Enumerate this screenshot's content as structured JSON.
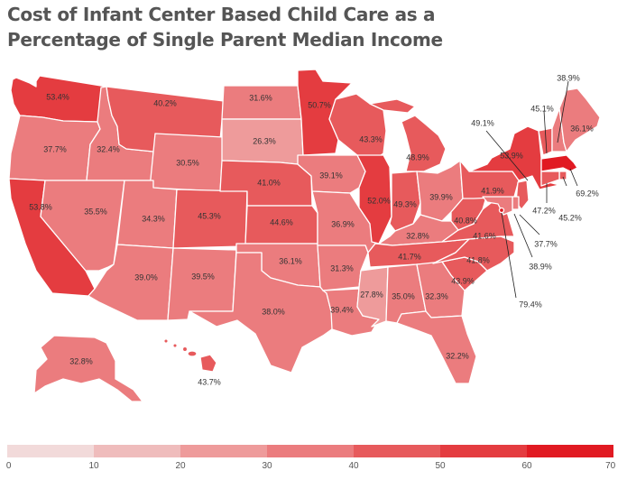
{
  "title": {
    "line1": "Cost of Infant Center Based Child Care as a",
    "line2": "Percentage of Single Parent Median Income"
  },
  "legend": {
    "ticks": [
      "0",
      "10",
      "20",
      "30",
      "40",
      "50",
      "60",
      "70"
    ],
    "bins": [
      {
        "min": 0,
        "max": 10,
        "color": "#f2dada"
      },
      {
        "min": 10,
        "max": 20,
        "color": "#efbcbc"
      },
      {
        "min": 20,
        "max": 30,
        "color": "#ee9b9b"
      },
      {
        "min": 30,
        "max": 40,
        "color": "#eb7c7e"
      },
      {
        "min": 40,
        "max": 50,
        "color": "#e75a5c"
      },
      {
        "min": 50,
        "max": 60,
        "color": "#e43c40"
      },
      {
        "min": 60,
        "max": 70,
        "color": "#e11a22"
      }
    ]
  },
  "states": {
    "WA": {
      "name": "Washington",
      "value": 53.4,
      "label": "53.4%"
    },
    "OR": {
      "name": "Oregon",
      "value": 37.7,
      "label": "37.7%"
    },
    "CA": {
      "name": "California",
      "value": 53.8,
      "label": "53.8%"
    },
    "ID": {
      "name": "Idaho",
      "value": 32.4,
      "label": "32.4%"
    },
    "NV": {
      "name": "Nevada",
      "value": 35.5,
      "label": "35.5%"
    },
    "MT": {
      "name": "Montana",
      "value": 40.2,
      "label": "40.2%"
    },
    "WY": {
      "name": "Wyoming",
      "value": 30.5,
      "label": "30.5%"
    },
    "UT": {
      "name": "Utah",
      "value": 34.3,
      "label": "34.3%"
    },
    "AZ": {
      "name": "Arizona",
      "value": 39.0,
      "label": "39.0%"
    },
    "CO": {
      "name": "Colorado",
      "value": 45.3,
      "label": "45.3%"
    },
    "NM": {
      "name": "New Mexico",
      "value": 39.5,
      "label": "39.5%"
    },
    "ND": {
      "name": "North Dakota",
      "value": 31.6,
      "label": "31.6%"
    },
    "SD": {
      "name": "South Dakota",
      "value": 26.3,
      "label": "26.3%"
    },
    "NE": {
      "name": "Nebraska",
      "value": 41.0,
      "label": "41.0%"
    },
    "KS": {
      "name": "Kansas",
      "value": 44.6,
      "label": "44.6%"
    },
    "OK": {
      "name": "Oklahoma",
      "value": 36.1,
      "label": "36.1%"
    },
    "TX": {
      "name": "Texas",
      "value": 38.0,
      "label": "38.0%"
    },
    "MN": {
      "name": "Minnesota",
      "value": 50.7,
      "label": "50.7%"
    },
    "IA": {
      "name": "Iowa",
      "value": 39.1,
      "label": "39.1%"
    },
    "MO": {
      "name": "Missouri",
      "value": 36.9,
      "label": "36.9%"
    },
    "AR": {
      "name": "Arkansas",
      "value": 31.3,
      "label": "31.3%"
    },
    "LA": {
      "name": "Louisiana",
      "value": 39.4,
      "label": "39.4%"
    },
    "WI": {
      "name": "Wisconsin",
      "value": 43.3,
      "label": "43.3%"
    },
    "IL": {
      "name": "Illinois",
      "value": 52.0,
      "label": "52.0%"
    },
    "MI": {
      "name": "Michigan",
      "value": 48.9,
      "label": "48.9%"
    },
    "IN": {
      "name": "Indiana",
      "value": 49.3,
      "label": "49.3%"
    },
    "OH": {
      "name": "Ohio",
      "value": 39.9,
      "label": "39.9%"
    },
    "KY": {
      "name": "Kentucky",
      "value": 32.8,
      "label": "32.8%"
    },
    "TN": {
      "name": "Tennessee",
      "value": 41.7,
      "label": "41.7%"
    },
    "MS": {
      "name": "Mississippi",
      "value": 27.8,
      "label": "27.8%"
    },
    "AL": {
      "name": "Alabama",
      "value": 35.0,
      "label": "35.0%"
    },
    "GA": {
      "name": "Georgia",
      "value": 32.3,
      "label": "32.3%"
    },
    "FL": {
      "name": "Florida",
      "value": 32.2,
      "label": "32.2%"
    },
    "SC": {
      "name": "South Carolina",
      "value": 43.9,
      "label": "43.9%"
    },
    "NC": {
      "name": "North Carolina",
      "value": 41.8,
      "label": "41.8%"
    },
    "VA": {
      "name": "Virginia",
      "value": 41.6,
      "label": "41.6%"
    },
    "WV": {
      "name": "West Virginia",
      "value": 40.8,
      "label": "40.8%"
    },
    "PA": {
      "name": "Pennsylvania",
      "value": 41.9,
      "label": "41.9%"
    },
    "NY": {
      "name": "New York",
      "value": 53.9,
      "label": "53.9%"
    },
    "VT": {
      "name": "Vermont",
      "value": 45.1,
      "label": "45.1%"
    },
    "NH": {
      "name": "New Hampshire",
      "value": 38.9,
      "label": "38.9%"
    },
    "ME": {
      "name": "Maine",
      "value": 36.1,
      "label": "36.1%"
    },
    "MA": {
      "name": "Massachusetts",
      "value": 69.2,
      "label": "69.2%"
    },
    "RI": {
      "name": "Rhode Island",
      "value": 45.2,
      "label": "45.2%"
    },
    "CT": {
      "name": "Connecticut",
      "value": 47.2,
      "label": "47.2%"
    },
    "NJ": {
      "name": "New Jersey",
      "value": 49.1,
      "label": "49.1%"
    },
    "DE": {
      "name": "Delaware",
      "value": 37.7,
      "label": "37.7%"
    },
    "MD": {
      "name": "Maryland",
      "value": 38.9,
      "label": "38.9%"
    },
    "DC": {
      "name": "District of Columbia",
      "value": 79.4,
      "label": "79.4%"
    },
    "AK": {
      "name": "Alaska",
      "value": 32.8,
      "label": "32.8%"
    },
    "HI": {
      "name": "Hawaii",
      "value": 43.7,
      "label": "43.7%"
    }
  }
}
